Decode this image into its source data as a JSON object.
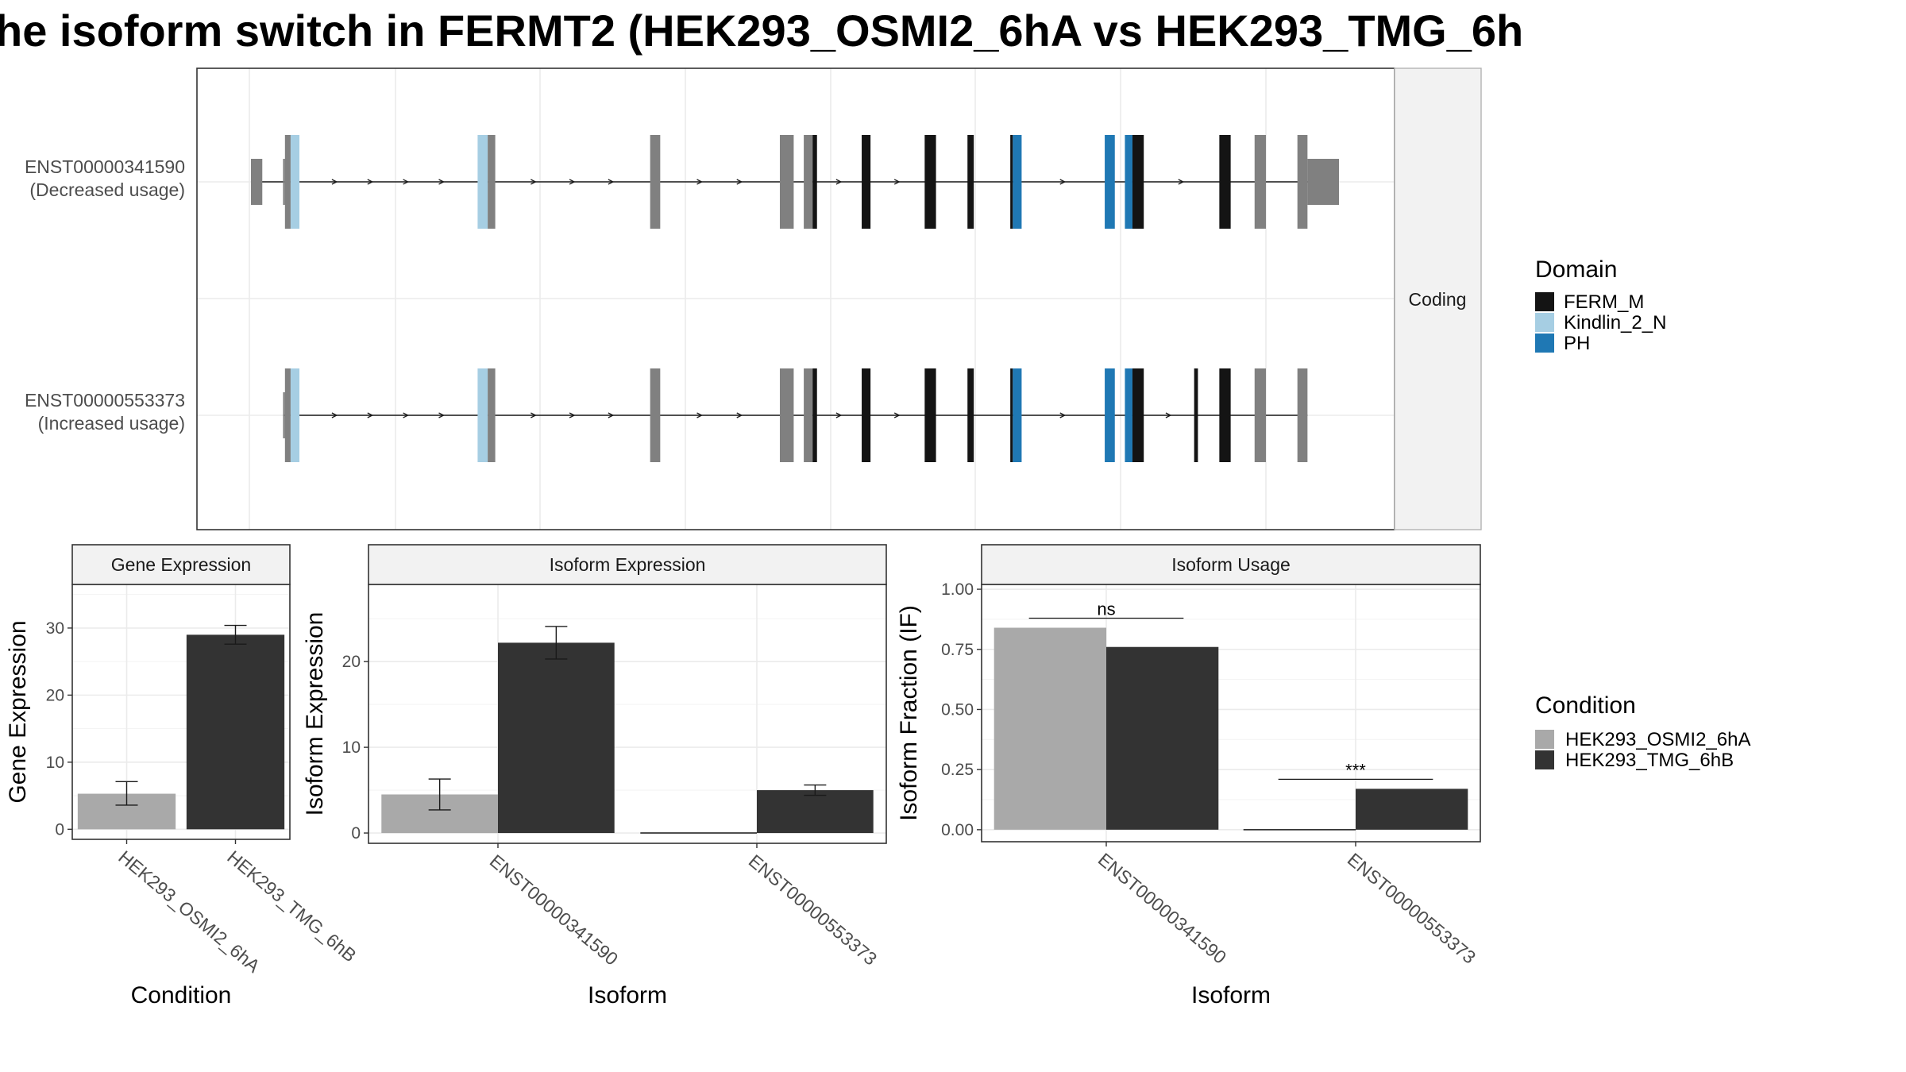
{
  "title": "he isoform switch in FERMT2 (HEK293_OSMI2_6hA vs HEK293_TMG_6h",
  "colors": {
    "intron": "#1a1a1a",
    "exon_plain": "#808080",
    "condition_a": "#a9a9a9",
    "condition_b": "#333333",
    "FERM_M": "#141414",
    "Kindlin_2_N": "#a6cee3",
    "PH": "#1f78b4"
  },
  "transcript_panel": {
    "strip_label": "Coding",
    "transcripts": [
      {
        "id": "ENST00000341590",
        "usage": "(Decreased usage)",
        "exons": [
          {
            "start": 0.0,
            "end": 0.9,
            "coding": false,
            "domain": null
          },
          {
            "start": 2.55,
            "end": 2.7,
            "coding": false,
            "domain": null
          },
          {
            "start": 2.7,
            "end": 3.15,
            "coding": true,
            "domain": null
          },
          {
            "start": 3.15,
            "end": 3.85,
            "coding": true,
            "domain": "Kindlin_2_N"
          },
          {
            "start": 18.0,
            "end": 18.8,
            "coding": true,
            "domain": "Kindlin_2_N"
          },
          {
            "start": 18.8,
            "end": 19.4,
            "coding": true,
            "domain": null
          },
          {
            "start": 31.7,
            "end": 32.5,
            "coding": true,
            "domain": null
          },
          {
            "start": 42.0,
            "end": 43.1,
            "coding": true,
            "domain": null
          },
          {
            "start": 43.9,
            "end": 44.6,
            "coding": true,
            "domain": null
          },
          {
            "start": 44.6,
            "end": 44.95,
            "coding": true,
            "domain": "FERM_M"
          },
          {
            "start": 48.5,
            "end": 49.2,
            "coding": true,
            "domain": "FERM_M"
          },
          {
            "start": 53.5,
            "end": 54.4,
            "coding": true,
            "domain": "FERM_M"
          },
          {
            "start": 56.9,
            "end": 57.4,
            "coding": true,
            "domain": "FERM_M"
          },
          {
            "start": 60.3,
            "end": 60.5,
            "coding": true,
            "domain": "FERM_M"
          },
          {
            "start": 60.5,
            "end": 61.2,
            "coding": true,
            "domain": "PH"
          },
          {
            "start": 67.8,
            "end": 68.6,
            "coding": true,
            "domain": "PH"
          },
          {
            "start": 69.4,
            "end": 70.0,
            "coding": true,
            "domain": "PH"
          },
          {
            "start": 70.0,
            "end": 70.9,
            "coding": true,
            "domain": "FERM_M"
          },
          {
            "start": 76.9,
            "end": 77.8,
            "coding": true,
            "domain": "FERM_M"
          },
          {
            "start": 79.7,
            "end": 80.6,
            "coding": true,
            "domain": null
          },
          {
            "start": 83.1,
            "end": 83.9,
            "coding": true,
            "domain": null
          },
          {
            "start": 83.9,
            "end": 86.4,
            "coding": false,
            "domain": null
          }
        ]
      },
      {
        "id": "ENST00000553373",
        "usage": "(Increased usage)",
        "exons": [
          {
            "start": 2.55,
            "end": 2.7,
            "coding": false,
            "domain": null
          },
          {
            "start": 2.7,
            "end": 3.15,
            "coding": true,
            "domain": null
          },
          {
            "start": 3.15,
            "end": 3.85,
            "coding": true,
            "domain": "Kindlin_2_N"
          },
          {
            "start": 18.0,
            "end": 18.8,
            "coding": true,
            "domain": "Kindlin_2_N"
          },
          {
            "start": 18.8,
            "end": 19.4,
            "coding": true,
            "domain": null
          },
          {
            "start": 31.7,
            "end": 32.5,
            "coding": true,
            "domain": null
          },
          {
            "start": 42.0,
            "end": 43.1,
            "coding": true,
            "domain": null
          },
          {
            "start": 43.9,
            "end": 44.6,
            "coding": true,
            "domain": null
          },
          {
            "start": 44.6,
            "end": 44.95,
            "coding": true,
            "domain": "FERM_M"
          },
          {
            "start": 48.5,
            "end": 49.2,
            "coding": true,
            "domain": "FERM_M"
          },
          {
            "start": 53.5,
            "end": 54.4,
            "coding": true,
            "domain": "FERM_M"
          },
          {
            "start": 56.9,
            "end": 57.4,
            "coding": true,
            "domain": "FERM_M"
          },
          {
            "start": 60.3,
            "end": 60.5,
            "coding": true,
            "domain": "FERM_M"
          },
          {
            "start": 60.5,
            "end": 61.2,
            "coding": true,
            "domain": "PH"
          },
          {
            "start": 67.8,
            "end": 68.6,
            "coding": true,
            "domain": "PH"
          },
          {
            "start": 69.4,
            "end": 70.0,
            "coding": true,
            "domain": "PH"
          },
          {
            "start": 70.0,
            "end": 70.9,
            "coding": true,
            "domain": "FERM_M"
          },
          {
            "start": 74.9,
            "end": 75.2,
            "coding": true,
            "domain": "FERM_M"
          },
          {
            "start": 76.9,
            "end": 77.8,
            "coding": true,
            "domain": "FERM_M"
          },
          {
            "start": 79.7,
            "end": 80.6,
            "coding": true,
            "domain": null
          },
          {
            "start": 83.1,
            "end": 83.9,
            "coding": true,
            "domain": null
          }
        ]
      }
    ]
  },
  "domain_legend": {
    "title": "Domain",
    "items": [
      {
        "label": "FERM_M",
        "key": "FERM_M"
      },
      {
        "label": "Kindlin_2_N",
        "key": "Kindlin_2_N"
      },
      {
        "label": "PH",
        "key": "PH"
      }
    ]
  },
  "condition_legend": {
    "title": "Condition",
    "items": [
      {
        "label": "HEK293_OSMI2_6hA",
        "key": "condition_a"
      },
      {
        "label": "HEK293_TMG_6hB",
        "key": "condition_b"
      }
    ]
  },
  "chart_data": [
    {
      "type": "bar",
      "title": "Gene Expression",
      "xlabel": "Condition",
      "ylabel": "Gene Expression",
      "categories": [
        "HEK293_OSMI2_6hA",
        "HEK293_TMG_6hB"
      ],
      "values": [
        5.3,
        29.0
      ],
      "error_low": [
        3.6,
        27.6
      ],
      "error_high": [
        7.1,
        30.4
      ],
      "ylim": [
        -1.5,
        36.5
      ],
      "yticks": [
        0,
        10,
        20,
        30
      ],
      "grid": true
    },
    {
      "type": "bar",
      "title": "Isoform Expression",
      "xlabel": "Isoform",
      "ylabel": "Isoform Expression",
      "categories": [
        "ENST00000341590",
        "ENST00000553373"
      ],
      "series": [
        {
          "name": "HEK293_OSMI2_6hA",
          "values": [
            4.5,
            0.0
          ],
          "error_low": [
            2.7,
            0.0
          ],
          "error_high": [
            6.3,
            0.0
          ]
        },
        {
          "name": "HEK293_TMG_6hB",
          "values": [
            22.2,
            5.0
          ],
          "error_low": [
            20.3,
            4.4
          ],
          "error_high": [
            24.1,
            5.6
          ]
        }
      ],
      "ylim": [
        -1.2,
        29.0
      ],
      "yticks": [
        0,
        10,
        20
      ],
      "grid": true
    },
    {
      "type": "bar",
      "title": "Isoform Usage",
      "xlabel": "Isoform",
      "ylabel": "Isoform Fraction (IF)",
      "categories": [
        "ENST00000341590",
        "ENST00000553373"
      ],
      "series": [
        {
          "name": "HEK293_OSMI2_6hA",
          "values": [
            0.84,
            0.0
          ]
        },
        {
          "name": "HEK293_TMG_6hB",
          "values": [
            0.76,
            0.17
          ]
        }
      ],
      "significance": [
        "ns",
        "***"
      ],
      "ylim": [
        -0.05,
        1.02
      ],
      "yticks": [
        0.0,
        0.25,
        0.5,
        0.75,
        1.0
      ],
      "ytick_labels": [
        "0.00",
        "0.25",
        "0.50",
        "0.75",
        "1.00"
      ],
      "grid": true
    }
  ]
}
